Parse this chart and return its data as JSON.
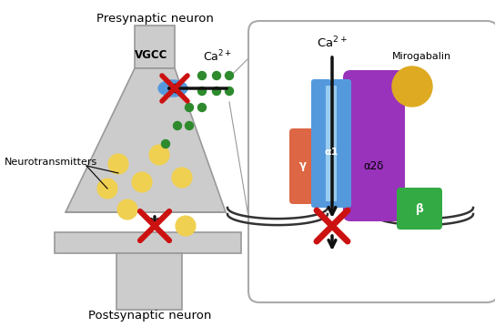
{
  "presynaptic_label": "Presynaptic neuron",
  "postsynaptic_label": "Postsynaptic neuron",
  "neurotransmitters_label": "Neurotransmitters",
  "vgcc_label": "VGCC",
  "ca2plus_left": "Ca$^{2+}$",
  "ca2plus_right": "Ca$^{2+}$",
  "mirogabalin_label": "Mirogabalin",
  "alpha2delta_label": "α2δ",
  "alpha1_label": "α1",
  "gamma_label": "γ",
  "beta_label": "β",
  "bg_color": "#ffffff",
  "neuron_fill": "#cccccc",
  "neuron_edge": "#999999",
  "ca_dot_color": "#2d8a2d",
  "nt_color": "#f0d050",
  "nt_edge": "#b0a030",
  "vgcc_blue": "#5599dd",
  "vgcc_dark_blue": "#3366aa",
  "arrow_color": "#111111",
  "red_x_color": "#cc1111",
  "alpha1_color": "#5599dd",
  "alpha1_light": "#99ccee",
  "gamma_color": "#dd6644",
  "alpha2delta_color": "#9933bb",
  "beta_color": "#33aa44",
  "mirogabalin_color": "#ddaa22",
  "box_fill": "#ffffff",
  "box_edge": "#aaaaaa",
  "membrane_color": "#333333"
}
